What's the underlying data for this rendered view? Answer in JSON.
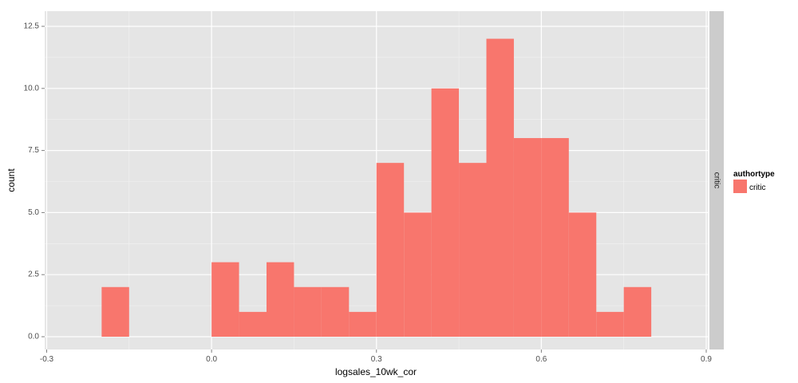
{
  "chart_data": {
    "type": "bar",
    "xlabel": "logsales_10wk_cor",
    "ylabel": "count",
    "xlim": [
      -0.3,
      0.9
    ],
    "ylim": [
      0,
      12.5
    ],
    "x_ticks": [
      {
        "value": -0.3,
        "label": "-0.3"
      },
      {
        "value": 0.0,
        "label": "0.0"
      },
      {
        "value": 0.3,
        "label": "0.3"
      },
      {
        "value": 0.6,
        "label": "0.6"
      },
      {
        "value": 0.9,
        "label": "0.9"
      }
    ],
    "y_ticks": [
      {
        "value": 0,
        "label": "0.0"
      },
      {
        "value": 2.5,
        "label": "2.5"
      },
      {
        "value": 5,
        "label": "5.0"
      },
      {
        "value": 7.5,
        "label": "7.5"
      },
      {
        "value": 10,
        "label": "10.0"
      },
      {
        "value": 12.5,
        "label": "12.5"
      }
    ],
    "grid": true,
    "bin_width": 0.05,
    "bins": [
      {
        "x0": -0.2,
        "x1": -0.15,
        "count": 2
      },
      {
        "x0": 0.0,
        "x1": 0.05,
        "count": 3
      },
      {
        "x0": 0.05,
        "x1": 0.1,
        "count": 1
      },
      {
        "x0": 0.1,
        "x1": 0.15,
        "count": 3
      },
      {
        "x0": 0.15,
        "x1": 0.2,
        "count": 2
      },
      {
        "x0": 0.2,
        "x1": 0.25,
        "count": 2
      },
      {
        "x0": 0.25,
        "x1": 0.3,
        "count": 1
      },
      {
        "x0": 0.3,
        "x1": 0.35,
        "count": 7
      },
      {
        "x0": 0.35,
        "x1": 0.4,
        "count": 5
      },
      {
        "x0": 0.4,
        "x1": 0.45,
        "count": 10
      },
      {
        "x0": 0.45,
        "x1": 0.5,
        "count": 7
      },
      {
        "x0": 0.5,
        "x1": 0.55,
        "count": 12
      },
      {
        "x0": 0.55,
        "x1": 0.6,
        "count": 8
      },
      {
        "x0": 0.6,
        "x1": 0.65,
        "count": 8
      },
      {
        "x0": 0.65,
        "x1": 0.7,
        "count": 5
      },
      {
        "x0": 0.7,
        "x1": 0.75,
        "count": 1
      },
      {
        "x0": 0.75,
        "x1": 0.8,
        "count": 2
      }
    ],
    "facet_label": "critic",
    "legend": {
      "title": "authortype",
      "position": "right",
      "entries": [
        {
          "label": "critic",
          "color": "#F8766D"
        }
      ]
    },
    "colors": {
      "fill": "#F8766D",
      "panel_background": "#E5E5E5",
      "grid_major": "#FFFFFF",
      "strip_background": "#CCCCCC"
    }
  }
}
